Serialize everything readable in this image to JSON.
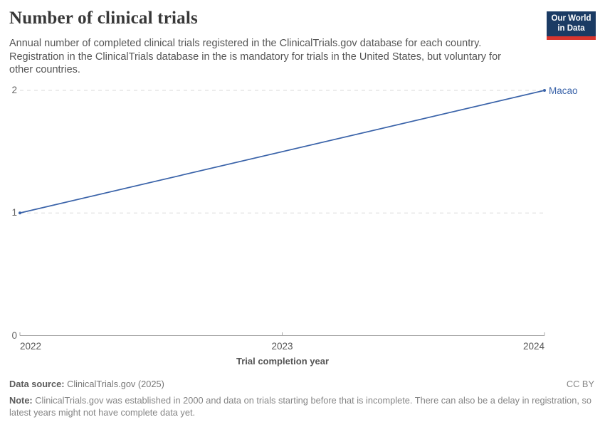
{
  "header": {
    "title": "Number of clinical trials",
    "subtitle": "Annual number of completed clinical trials registered in the ClinicalTrials.gov database for each country. Registration in the ClinicalTrials database in the is mandatory for trials in the United States, but voluntary for other countries.",
    "logo": {
      "line1": "Our World",
      "line2": "in Data"
    }
  },
  "chart_data": {
    "type": "line",
    "title": "Number of clinical trials",
    "xlabel": "Trial completion year",
    "ylabel": "",
    "xlim": [
      2022,
      2024
    ],
    "ylim": [
      0,
      2
    ],
    "xticks": [
      2022,
      2023,
      2024
    ],
    "yticks": [
      0,
      1,
      2
    ],
    "grid": "horizontal-dashed",
    "legend_position": "end-of-line-label",
    "series": [
      {
        "name": "Macao",
        "color": "#3a63a9",
        "x": [
          2022,
          2024
        ],
        "y": [
          1,
          2
        ]
      }
    ]
  },
  "footer": {
    "datasource_label": "Data source:",
    "datasource_value": "ClinicalTrials.gov (2025)",
    "license": "CC BY",
    "note_label": "Note:",
    "note_value": "ClinicalTrials.gov was established in 2000 and data on trials starting before that is incomplete. There can also be a delay in registration, so latest years might not have complete data yet."
  },
  "colors": {
    "line": "#3a63a9",
    "grid": "#dadada",
    "axis": "#a8a8a8",
    "title_text": "#383838",
    "subtitle_text": "#555555",
    "logo_navy": "#1b3b64",
    "logo_red": "#d8352e"
  }
}
